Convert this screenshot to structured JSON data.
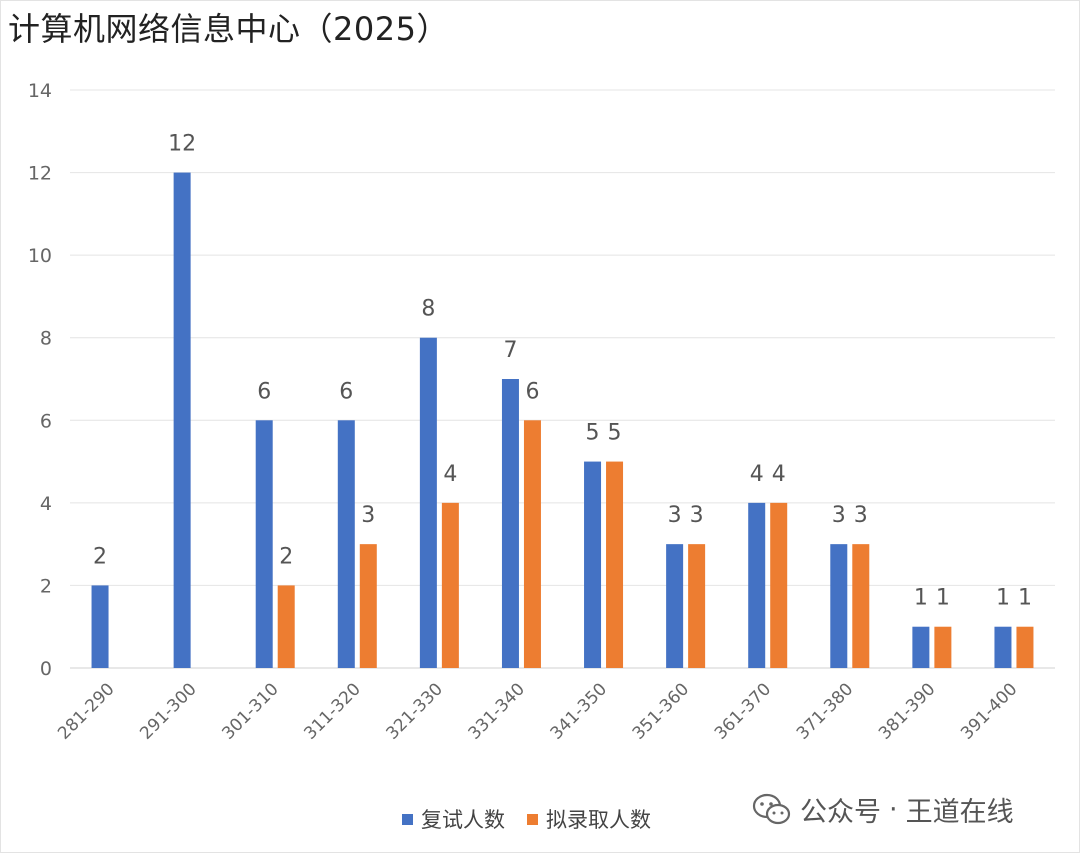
{
  "chart_data": {
    "type": "bar",
    "title": "计算机网络信息中心（2025）",
    "categories": [
      "281-290",
      "291-300",
      "301-310",
      "311-320",
      "321-330",
      "331-340",
      "341-350",
      "351-360",
      "361-370",
      "371-380",
      "381-390",
      "391-400"
    ],
    "series": [
      {
        "name": "复试人数",
        "values": [
          2,
          12,
          6,
          6,
          8,
          7,
          5,
          3,
          4,
          3,
          1,
          1
        ],
        "color": "#4472C4"
      },
      {
        "name": "拟录取人数",
        "values": [
          null,
          null,
          2,
          3,
          4,
          6,
          5,
          3,
          4,
          3,
          1,
          1
        ],
        "color": "#ED7D31"
      }
    ],
    "ylim": [
      0,
      14
    ],
    "yticks": [
      0,
      2,
      4,
      6,
      8,
      10,
      12,
      14
    ],
    "grid": true,
    "legend_position": "bottom"
  },
  "watermark": {
    "brand": "公众号",
    "separator": "·",
    "name": "王道在线"
  }
}
